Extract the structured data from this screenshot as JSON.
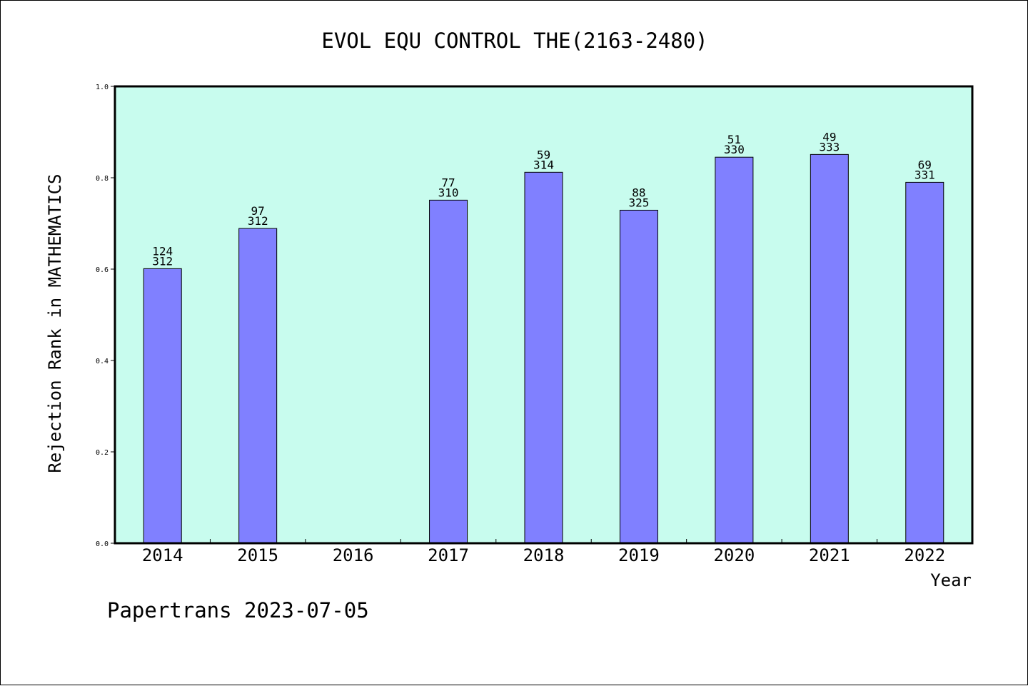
{
  "chart_data": {
    "type": "bar",
    "title": "EVOL EQU CONTROL THE(2163-2480)",
    "xlabel": "Year",
    "ylabel": "Rejection Rank in MATHEMATICS",
    "categories": [
      "2014",
      "2015",
      "2016",
      "2017",
      "2018",
      "2019",
      "2020",
      "2021",
      "2022"
    ],
    "values": [
      0.601,
      0.689,
      null,
      0.751,
      0.812,
      0.729,
      0.845,
      0.851,
      0.79
    ],
    "label_top": [
      "124",
      "97",
      "",
      "77",
      "59",
      "88",
      "51",
      "49",
      "69"
    ],
    "label_bottom": [
      "312",
      "312",
      "",
      "310",
      "314",
      "325",
      "330",
      "333",
      "331"
    ],
    "ylim": [
      0,
      1.0
    ],
    "yticks": [
      "0.0",
      "0.2",
      "0.4",
      "0.6",
      "0.8",
      "1.0"
    ],
    "grid": false,
    "legend": "none",
    "colors": {
      "plot_background": "#c8fcee",
      "bar_fill": "#8080ff",
      "bar_stroke": "#000000",
      "axis": "#000000"
    }
  },
  "footer": {
    "text": "Papertrans 2023-07-05"
  }
}
